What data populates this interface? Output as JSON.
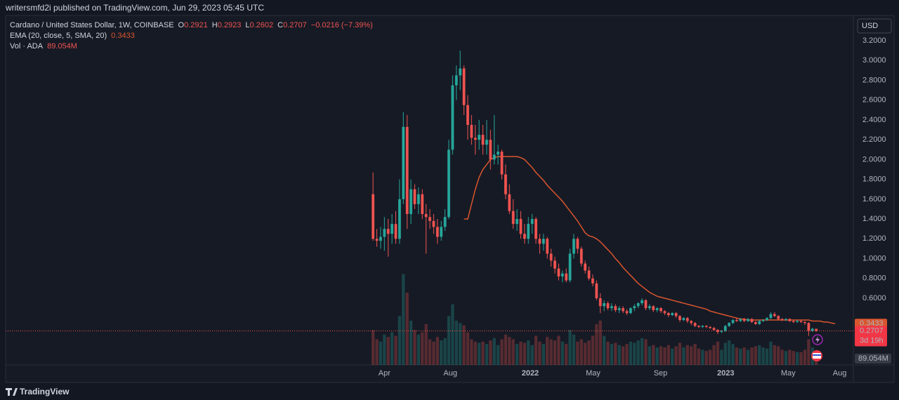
{
  "header": {
    "publisher": "writersmfd2i published on TradingView.com, Jun 29, 2023 05:45 UTC",
    "symbol": "Cardano / United States Dollar, 1W, COINBASE",
    "o": "O",
    "h": "H",
    "l": "L",
    "c": "C",
    "change": "−0.0216 (−7.39%)",
    "currency": "USD",
    "countdown": "3d 19h",
    "brand": "TradingView"
  },
  "chart_data": {
    "type": "candlestick",
    "up_color": "#26a69a",
    "down_color": "#ef5350",
    "open": [
      1.65,
      1.2,
      1.18,
      1.22,
      1.3,
      1.25,
      1.35,
      1.2,
      1.6,
      2.33,
      1.45,
      1.7,
      1.55,
      1.65,
      1.45,
      1.42,
      1.38,
      1.32,
      1.22,
      1.32,
      1.42,
      2.1,
      2.75,
      2.85,
      2.92,
      2.55,
      2.35,
      2.22,
      2.2,
      2.25,
      2.15,
      2.2,
      2.0,
      2.05,
      2.08,
      1.85,
      1.65,
      1.48,
      1.35,
      1.4,
      1.25,
      1.2,
      1.35,
      1.4,
      1.2,
      1.15,
      1.2,
      1.05,
      0.98,
      0.9,
      0.82,
      0.85,
      0.78,
      1.05,
      1.2,
      1.1,
      0.95,
      0.88,
      0.8,
      0.75,
      0.6,
      0.52,
      0.55,
      0.5,
      0.52,
      0.48,
      0.5,
      0.47,
      0.45,
      0.5,
      0.52,
      0.55,
      0.58,
      0.5,
      0.52,
      0.48,
      0.5,
      0.47,
      0.45,
      0.43,
      0.45,
      0.42,
      0.38,
      0.4,
      0.37,
      0.35,
      0.32,
      0.31,
      0.32,
      0.31,
      0.3,
      0.28,
      0.26,
      0.27,
      0.32,
      0.35,
      0.38,
      0.37,
      0.39,
      0.37,
      0.39,
      0.36,
      0.34,
      0.37,
      0.38,
      0.4,
      0.44,
      0.42,
      0.39,
      0.38,
      0.39,
      0.37,
      0.36,
      0.37,
      0.36,
      0.35,
      0.27,
      0.2921
    ],
    "high": [
      1.87,
      1.3,
      1.32,
      1.42,
      1.4,
      1.45,
      1.48,
      1.8,
      2.48,
      2.45,
      1.8,
      1.75,
      1.72,
      1.7,
      1.55,
      1.5,
      1.45,
      1.4,
      1.38,
      1.5,
      2.2,
      2.85,
      2.95,
      3.1,
      2.95,
      2.65,
      2.45,
      2.35,
      2.4,
      2.35,
      2.4,
      2.3,
      2.45,
      2.15,
      2.1,
      1.95,
      1.75,
      1.6,
      1.5,
      1.48,
      1.35,
      1.42,
      1.45,
      1.42,
      1.25,
      1.25,
      1.22,
      1.1,
      1.02,
      0.95,
      0.88,
      0.9,
      1.1,
      1.25,
      1.22,
      1.12,
      0.98,
      0.92,
      0.84,
      0.78,
      0.65,
      0.58,
      0.57,
      0.55,
      0.54,
      0.52,
      0.52,
      0.49,
      0.51,
      0.54,
      0.56,
      0.6,
      0.59,
      0.54,
      0.53,
      0.51,
      0.51,
      0.48,
      0.46,
      0.46,
      0.46,
      0.43,
      0.41,
      0.41,
      0.38,
      0.36,
      0.33,
      0.33,
      0.33,
      0.32,
      0.31,
      0.29,
      0.28,
      0.33,
      0.36,
      0.39,
      0.4,
      0.4,
      0.4,
      0.4,
      0.4,
      0.37,
      0.38,
      0.39,
      0.41,
      0.46,
      0.46,
      0.43,
      0.4,
      0.4,
      0.4,
      0.38,
      0.38,
      0.38,
      0.37,
      0.36,
      0.3,
      0.2923
    ],
    "low": [
      1.18,
      1.12,
      1.1,
      1.08,
      1.02,
      1.15,
      1.15,
      1.15,
      1.55,
      1.3,
      1.35,
      1.5,
      1.45,
      1.4,
      1.05,
      1.3,
      1.25,
      1.15,
      1.18,
      1.28,
      1.4,
      2.05,
      2.6,
      2.7,
      2.45,
      2.2,
      2.15,
      2.05,
      2.1,
      2.05,
      2.05,
      1.9,
      1.95,
      1.95,
      1.8,
      1.6,
      1.45,
      1.3,
      1.28,
      1.2,
      1.15,
      1.15,
      1.25,
      1.15,
      1.05,
      1.08,
      1.0,
      0.92,
      0.85,
      0.78,
      0.76,
      0.76,
      0.76,
      1.0,
      1.05,
      0.92,
      0.85,
      0.78,
      0.72,
      0.58,
      0.45,
      0.47,
      0.48,
      0.47,
      0.46,
      0.45,
      0.45,
      0.43,
      0.44,
      0.47,
      0.5,
      0.53,
      0.48,
      0.48,
      0.46,
      0.46,
      0.45,
      0.43,
      0.41,
      0.42,
      0.4,
      0.36,
      0.37,
      0.35,
      0.33,
      0.31,
      0.3,
      0.3,
      0.3,
      0.29,
      0.27,
      0.24,
      0.25,
      0.26,
      0.31,
      0.34,
      0.36,
      0.36,
      0.36,
      0.36,
      0.35,
      0.33,
      0.33,
      0.36,
      0.37,
      0.39,
      0.41,
      0.38,
      0.37,
      0.37,
      0.36,
      0.35,
      0.35,
      0.35,
      0.33,
      0.22,
      0.26,
      0.2602
    ],
    "close": [
      1.2,
      1.18,
      1.22,
      1.3,
      1.25,
      1.35,
      1.2,
      1.6,
      2.33,
      1.45,
      1.7,
      1.55,
      1.65,
      1.45,
      1.42,
      1.38,
      1.32,
      1.22,
      1.32,
      1.42,
      2.1,
      2.75,
      2.85,
      2.92,
      2.55,
      2.35,
      2.22,
      2.2,
      2.25,
      2.15,
      2.2,
      2.0,
      2.05,
      2.08,
      1.85,
      1.65,
      1.48,
      1.35,
      1.4,
      1.25,
      1.2,
      1.35,
      1.4,
      1.2,
      1.15,
      1.2,
      1.05,
      0.98,
      0.9,
      0.82,
      0.85,
      0.78,
      1.05,
      1.2,
      1.1,
      0.95,
      0.88,
      0.8,
      0.75,
      0.6,
      0.52,
      0.55,
      0.5,
      0.52,
      0.48,
      0.5,
      0.47,
      0.45,
      0.5,
      0.52,
      0.55,
      0.58,
      0.5,
      0.52,
      0.48,
      0.5,
      0.47,
      0.45,
      0.43,
      0.45,
      0.42,
      0.38,
      0.4,
      0.37,
      0.35,
      0.32,
      0.31,
      0.32,
      0.31,
      0.3,
      0.28,
      0.26,
      0.27,
      0.32,
      0.35,
      0.38,
      0.37,
      0.39,
      0.37,
      0.39,
      0.36,
      0.34,
      0.37,
      0.38,
      0.4,
      0.44,
      0.42,
      0.39,
      0.38,
      0.39,
      0.37,
      0.36,
      0.37,
      0.36,
      0.35,
      0.27,
      0.2923,
      0.2707
    ],
    "ema": {
      "name": "EMA (20, close, 5, SMA, 20)",
      "color": "#d9552e",
      "offset": 5,
      "values": [
        null,
        null,
        null,
        null,
        null,
        null,
        null,
        null,
        null,
        null,
        null,
        null,
        null,
        null,
        null,
        null,
        null,
        null,
        null,
        1.4,
        1.4,
        1.55,
        1.7,
        1.82,
        1.9,
        1.95,
        2.0,
        2.02,
        2.03,
        2.03,
        2.03,
        2.03,
        2.03,
        2.03,
        2.02,
        2.0,
        1.96,
        1.92,
        1.87,
        1.83,
        1.79,
        1.74,
        1.7,
        1.66,
        1.62,
        1.58,
        1.53,
        1.48,
        1.43,
        1.38,
        1.32,
        1.26,
        1.23,
        1.22,
        1.2,
        1.17,
        1.13,
        1.09,
        1.05,
        1.0,
        0.96,
        0.91,
        0.87,
        0.83,
        0.79,
        0.75,
        0.72,
        0.69,
        0.66,
        0.64,
        0.62,
        0.61,
        0.6,
        0.59,
        0.58,
        0.57,
        0.56,
        0.55,
        0.54,
        0.53,
        0.52,
        0.51,
        0.5,
        0.49,
        0.47,
        0.46,
        0.45,
        0.44,
        0.43,
        0.42,
        0.41,
        0.4,
        0.39,
        0.39,
        0.38,
        0.38,
        0.38,
        0.38,
        0.38,
        0.38,
        0.38,
        0.38,
        0.38,
        0.38,
        0.38,
        0.38,
        0.38,
        0.38,
        0.38,
        0.38,
        0.38,
        0.37,
        0.37,
        0.37,
        0.36,
        0.36,
        0.35,
        0.3433
      ]
    },
    "volume": {
      "name": "Vol · ADA",
      "axis": "y2",
      "last_label": "89.054M",
      "values": [
        300,
        220,
        200,
        260,
        240,
        280,
        250,
        420,
        780,
        620,
        380,
        300,
        260,
        280,
        350,
        220,
        200,
        240,
        210,
        230,
        420,
        520,
        380,
        360,
        340,
        280,
        220,
        200,
        190,
        200,
        180,
        210,
        230,
        170,
        220,
        260,
        240,
        220,
        180,
        200,
        190,
        210,
        170,
        250,
        200,
        180,
        240,
        220,
        210,
        250,
        200,
        180,
        300,
        260,
        200,
        220,
        190,
        210,
        250,
        350,
        380,
        250,
        200,
        180,
        190,
        170,
        160,
        180,
        200,
        190,
        210,
        230,
        220,
        160,
        170,
        150,
        160,
        150,
        170,
        140,
        160,
        190,
        150,
        170,
        160,
        180,
        140,
        130,
        120,
        130,
        170,
        200,
        130,
        190,
        210,
        180,
        150,
        140,
        150,
        130,
        150,
        160,
        170,
        150,
        140,
        200,
        170,
        160,
        130,
        120,
        130,
        120,
        110,
        110,
        130,
        220,
        150,
        89.054
      ]
    },
    "xlim": [
      -97,
      126.8
    ],
    "xticks": [
      {
        "value": 3.0,
        "label": "Apr"
      },
      {
        "value": 20.4,
        "label": "Aug"
      },
      {
        "value": 41.5,
        "label": "2022"
      },
      {
        "value": 58.1,
        "label": "May"
      },
      {
        "value": 75.9,
        "label": "Sep"
      },
      {
        "value": 93.1,
        "label": "2023"
      },
      {
        "value": 109.6,
        "label": "May"
      },
      {
        "value": 123.2,
        "label": "Aug"
      }
    ],
    "ylim": [
      -0.073,
      3.455
    ],
    "yticks": [
      {
        "value": 0.6,
        "label": "0.6000"
      },
      {
        "value": 0.8,
        "label": "0.8000"
      },
      {
        "value": 1.0,
        "label": "1.0000"
      },
      {
        "value": 1.2,
        "label": "1.2000"
      },
      {
        "value": 1.4,
        "label": "1.4000"
      },
      {
        "value": 1.6,
        "label": "1.6000"
      },
      {
        "value": 1.8,
        "label": "1.8000"
      },
      {
        "value": 2.0,
        "label": "2.0000"
      },
      {
        "value": 2.2,
        "label": "2.2000"
      },
      {
        "value": 2.4,
        "label": "2.4000"
      },
      {
        "value": 2.6,
        "label": "2.6000"
      },
      {
        "value": 2.8,
        "label": "2.8000"
      },
      {
        "value": 3.0,
        "label": "3.0000"
      },
      {
        "value": 3.2,
        "label": "3.2000"
      }
    ],
    "y2lim": [
      0,
      3000
    ],
    "grid": false
  }
}
